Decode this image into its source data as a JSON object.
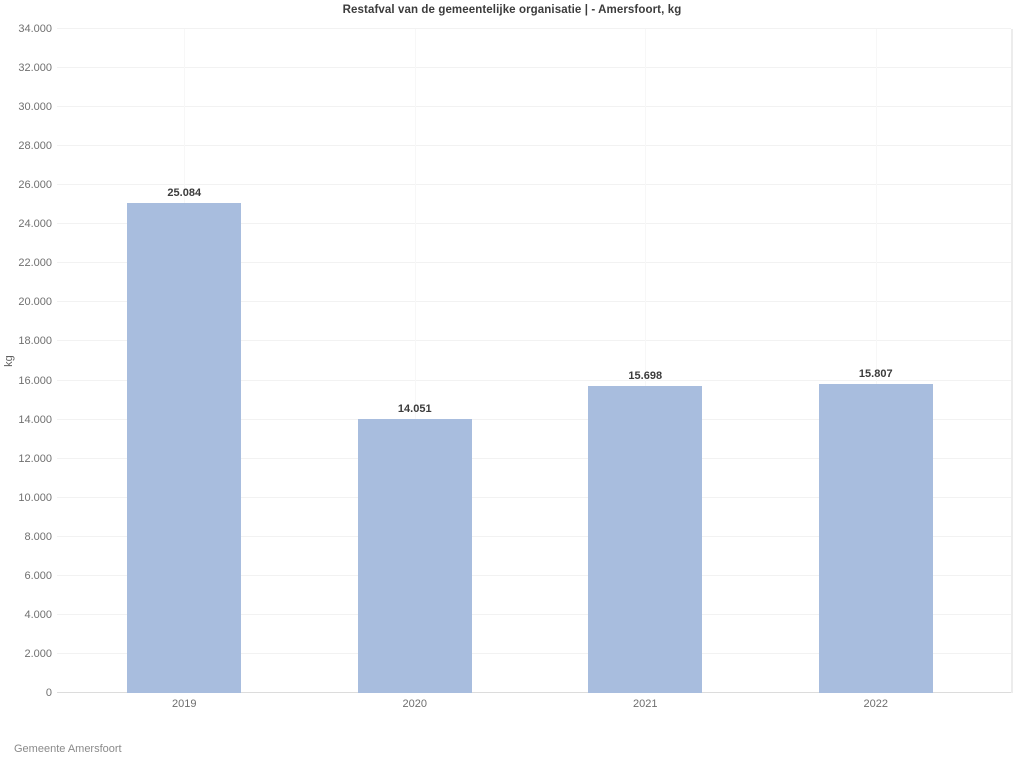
{
  "chart_data": {
    "type": "bar",
    "title": "Restafval van de gemeentelijke organisatie | - Amersfoort, kg",
    "ylabel": "kg",
    "categories": [
      "2019",
      "2020",
      "2021",
      "2022"
    ],
    "values": [
      25084,
      14051,
      15698,
      15807
    ],
    "value_labels": [
      "25.084",
      "14.051",
      "15.698",
      "15.807"
    ],
    "ylim": [
      0,
      34000
    ],
    "ytick_step": 2000,
    "ytick_labels": [
      "0",
      "2.000",
      "4.000",
      "6.000",
      "8.000",
      "10.000",
      "12.000",
      "14.000",
      "16.000",
      "18.000",
      "20.000",
      "22.000",
      "24.000",
      "26.000",
      "28.000",
      "30.000",
      "32.000",
      "34.000"
    ],
    "legend": "none",
    "grid": "horizontal-light-plus-faint-vertical-at-category-centers",
    "source": "Gemeente Amersfoort"
  },
  "colors": {
    "bar": "#a8bdde",
    "title_text": "#3c3c3c",
    "tick_text": "#707070",
    "value_label_text": "#3c3c3c",
    "gridline": "#f2f2f2",
    "axis_line": "#dcdcdc",
    "plot_border": "#ececec",
    "source_text": "#8a8a8a"
  }
}
